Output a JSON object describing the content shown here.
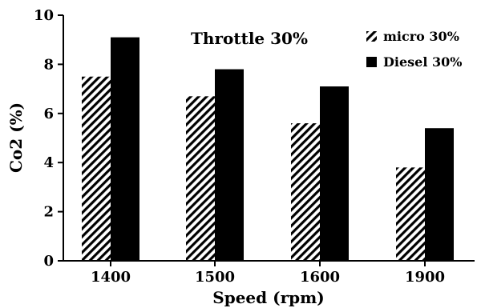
{
  "chart_data": {
    "type": "bar",
    "title": "Throttle 30%",
    "xlabel": "Speed (rpm)",
    "ylabel": "Co2 (%)",
    "categories": [
      "1400",
      "1500",
      "1600",
      "1900"
    ],
    "ylim": [
      0,
      10
    ],
    "yticks": [
      "0",
      "2",
      "4",
      "6",
      "8",
      "10"
    ],
    "grid": false,
    "legend_position": "top-right",
    "series": [
      {
        "name": "micro 30%",
        "values": [
          7.5,
          6.7,
          5.6,
          3.8
        ],
        "pattern": "diagonal-hatch",
        "color": "#000000"
      },
      {
        "name": "Diesel 30%",
        "values": [
          9.1,
          7.8,
          7.1,
          5.4
        ],
        "pattern": "solid",
        "color": "#000000"
      }
    ]
  }
}
